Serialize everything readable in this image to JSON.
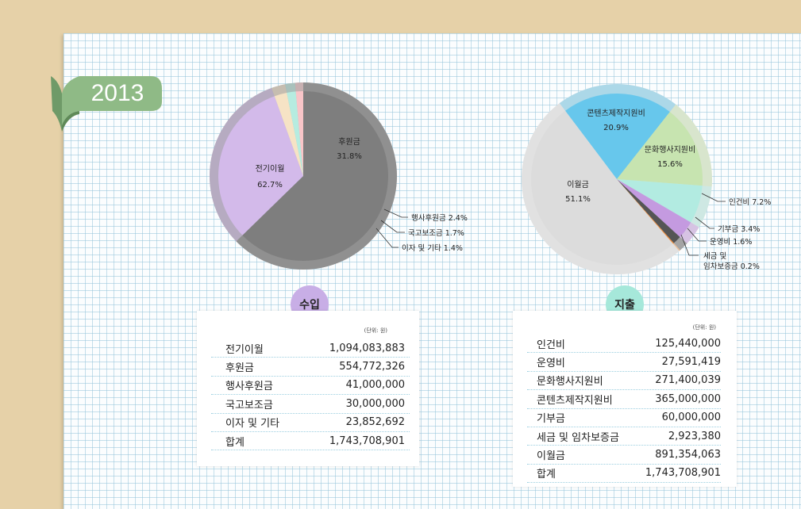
{
  "year": "2013",
  "colors": {
    "background": "#e6d1a8",
    "ribbon": "#8fba86",
    "income_badge": "#c8aee6",
    "expense_badge": "#a6e8da"
  },
  "chart_data": [
    {
      "type": "pie",
      "name": "income",
      "slices": [
        {
          "label": "전기이월",
          "value": 62.7,
          "display": "62.7%",
          "color": "#7e7e7e"
        },
        {
          "label": "후원금",
          "value": 31.8,
          "display": "31.8%",
          "color": "#d3baea"
        },
        {
          "label": "행사후원금",
          "value": 2.4,
          "display": "2.4%",
          "color": "#f6e3c5"
        },
        {
          "label": "국고보조금",
          "value": 1.7,
          "display": "1.7%",
          "color": "#b6ece0"
        },
        {
          "label": "이자 및 기타",
          "value": 1.4,
          "display": "1.4%",
          "color": "#f9c5c8"
        }
      ],
      "callouts": [
        {
          "text": "행사후원금 2.4%"
        },
        {
          "text": "국고보조금 1.7%"
        },
        {
          "text": "이자 및 기타 1.4%"
        }
      ]
    },
    {
      "type": "pie",
      "name": "expense",
      "slices": [
        {
          "label": "콘텐츠제작지원비",
          "value": 20.9,
          "display": "20.9%",
          "color": "#67c7ec"
        },
        {
          "label": "문화행사지원비",
          "value": 15.6,
          "display": "15.6%",
          "color": "#c7e4b0"
        },
        {
          "label": "인건비",
          "value": 7.2,
          "display": "7.2%",
          "color": "#b2ebe1"
        },
        {
          "label": "기부금",
          "value": 3.4,
          "display": "3.4%",
          "color": "#c49ae0"
        },
        {
          "label": "운영비",
          "value": 1.6,
          "display": "1.6%",
          "color": "#555555"
        },
        {
          "label": "세금 및 임차보증금",
          "value": 0.2,
          "display": "0.2%",
          "color": "#f08e3c"
        },
        {
          "label": "이월금",
          "value": 51.1,
          "display": "51.1%",
          "color": "#dcdcdc"
        }
      ],
      "callouts": [
        {
          "text": "인건비 7.2%"
        },
        {
          "text": "기부금 3.4%"
        },
        {
          "text": "운영비 1.6%"
        },
        {
          "line1": "세금 및",
          "line2": "임차보증금 0.2%"
        }
      ]
    }
  ],
  "income": {
    "badge": "수입",
    "unit": "(단위: 원)",
    "rows": [
      {
        "label": "전기이월",
        "value": "1,094,083,883"
      },
      {
        "label": "후원금",
        "value": "554,772,326"
      },
      {
        "label": "행사후원금",
        "value": "41,000,000"
      },
      {
        "label": "국고보조금",
        "value": "30,000,000"
      },
      {
        "label": "이자 및 기타",
        "value": "23,852,692"
      },
      {
        "label": "합계",
        "value": "1,743,708,901"
      }
    ]
  },
  "expense": {
    "badge": "지출",
    "unit": "(단위: 원)",
    "rows": [
      {
        "label": "인건비",
        "value": "125,440,000"
      },
      {
        "label": "운영비",
        "value": "27,591,419"
      },
      {
        "label": "문화행사지원비",
        "value": "271,400,039"
      },
      {
        "label": "콘텐츠제작지원비",
        "value": "365,000,000"
      },
      {
        "label": "기부금",
        "value": "60,000,000"
      },
      {
        "label": "세금 및 임차보증금",
        "value": "2,923,380"
      },
      {
        "label": "이월금",
        "value": "891,354,063"
      },
      {
        "label": "합계",
        "value": "1,743,708,901"
      }
    ]
  }
}
